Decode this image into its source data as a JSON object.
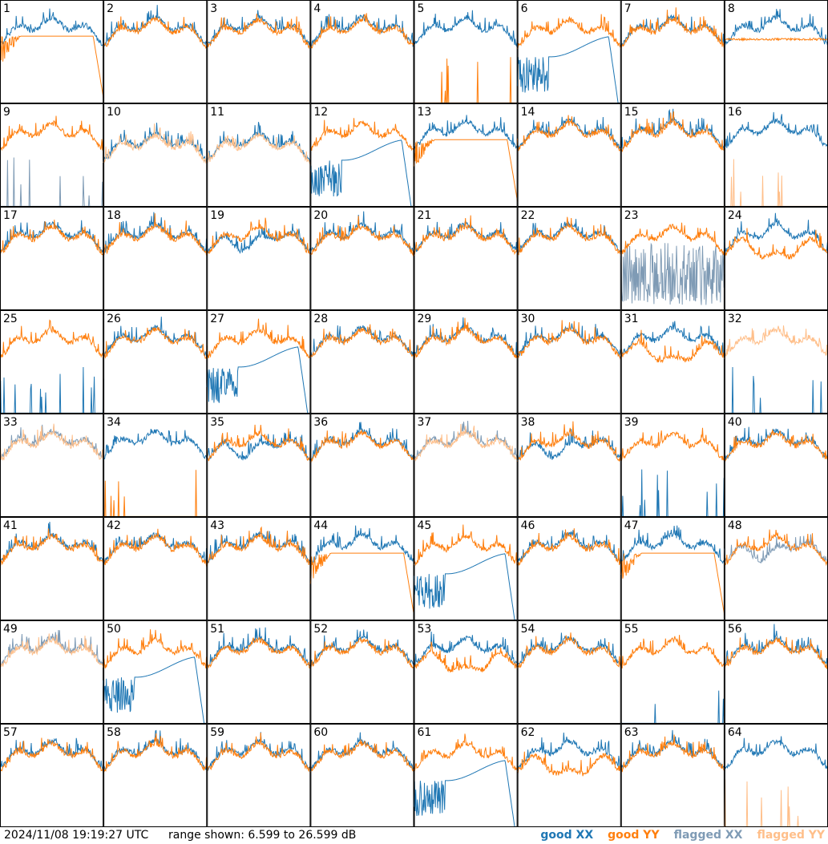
{
  "footer": {
    "timestamp": "2024/11/08 19:19:27 UTC",
    "range_text": "range shown: 6.599 to 26.599 dB"
  },
  "legend": [
    {
      "label": "good XX",
      "color": "#1f77b4"
    },
    {
      "label": "good YY",
      "color": "#ff7f0e"
    },
    {
      "label": "flagged XX",
      "color": "#7f9bb5"
    },
    {
      "label": "flagged YY",
      "color": "#ffbf8a"
    }
  ],
  "chart_data": {
    "type": "line",
    "layout": "small-multiples 8x8",
    "ylim": [
      6.599,
      26.599
    ],
    "y_unit": "dB",
    "panels": [
      {
        "label": "1",
        "xx": "good",
        "yy": "good",
        "shape": "yy-rolloff"
      },
      {
        "label": "2",
        "xx": "good",
        "yy": "good",
        "shape": "normal"
      },
      {
        "label": "3",
        "xx": "good",
        "yy": "good",
        "shape": "normal"
      },
      {
        "label": "4",
        "xx": "good",
        "yy": "good",
        "shape": "normal"
      },
      {
        "label": "5",
        "xx": "good",
        "yy": "good",
        "shape": "yy-dead"
      },
      {
        "label": "6",
        "xx": "good",
        "yy": "good",
        "shape": "xx-rolloff"
      },
      {
        "label": "7",
        "xx": "good",
        "yy": "good",
        "shape": "normal"
      },
      {
        "label": "8",
        "xx": "good",
        "yy": "good",
        "shape": "yy-flat"
      },
      {
        "label": "9",
        "xx": "flagged",
        "yy": "good",
        "shape": "xx-dead"
      },
      {
        "label": "10",
        "xx": "good",
        "yy": "flagged",
        "shape": "low"
      },
      {
        "label": "11",
        "xx": "good",
        "yy": "flagged",
        "shape": "low"
      },
      {
        "label": "12",
        "xx": "good",
        "yy": "good",
        "shape": "xx-rolloff"
      },
      {
        "label": "13",
        "xx": "good",
        "yy": "good",
        "shape": "yy-rolloff"
      },
      {
        "label": "14",
        "xx": "good",
        "yy": "good",
        "shape": "normal"
      },
      {
        "label": "15",
        "xx": "good",
        "yy": "good",
        "shape": "normal"
      },
      {
        "label": "16",
        "xx": "good",
        "yy": "flagged",
        "shape": "yy-dead"
      },
      {
        "label": "17",
        "xx": "good",
        "yy": "good",
        "shape": "normal"
      },
      {
        "label": "18",
        "xx": "good",
        "yy": "good",
        "shape": "normal"
      },
      {
        "label": "19",
        "xx": "good",
        "yy": "good",
        "shape": "xx-dip"
      },
      {
        "label": "20",
        "xx": "good",
        "yy": "good",
        "shape": "normal"
      },
      {
        "label": "21",
        "xx": "good",
        "yy": "good",
        "shape": "normal"
      },
      {
        "label": "22",
        "xx": "good",
        "yy": "good",
        "shape": "normal"
      },
      {
        "label": "23",
        "xx": "flagged",
        "yy": "good",
        "shape": "xx-noisy"
      },
      {
        "label": "24",
        "xx": "good",
        "yy": "good",
        "shape": "yy-dip"
      },
      {
        "label": "25",
        "xx": "good",
        "yy": "good",
        "shape": "xx-dead"
      },
      {
        "label": "26",
        "xx": "good",
        "yy": "good",
        "shape": "normal"
      },
      {
        "label": "27",
        "xx": "good",
        "yy": "good",
        "shape": "xx-rolloff"
      },
      {
        "label": "28",
        "xx": "good",
        "yy": "good",
        "shape": "normal"
      },
      {
        "label": "29",
        "xx": "good",
        "yy": "good",
        "shape": "normal"
      },
      {
        "label": "30",
        "xx": "good",
        "yy": "good",
        "shape": "normal"
      },
      {
        "label": "31",
        "xx": "good",
        "yy": "good",
        "shape": "yy-dip"
      },
      {
        "label": "32",
        "xx": "good",
        "yy": "flagged",
        "shape": "xx-dead"
      },
      {
        "label": "33",
        "xx": "flagged",
        "yy": "flagged",
        "shape": "normal"
      },
      {
        "label": "34",
        "xx": "good",
        "yy": "good",
        "shape": "yy-dead"
      },
      {
        "label": "35",
        "xx": "good",
        "yy": "good",
        "shape": "xx-dip"
      },
      {
        "label": "36",
        "xx": "good",
        "yy": "good",
        "shape": "normal"
      },
      {
        "label": "37",
        "xx": "flagged",
        "yy": "flagged",
        "shape": "normal"
      },
      {
        "label": "38",
        "xx": "good",
        "yy": "good",
        "shape": "xx-dip"
      },
      {
        "label": "39",
        "xx": "good",
        "yy": "good",
        "shape": "xx-dead"
      },
      {
        "label": "40",
        "xx": "good",
        "yy": "good",
        "shape": "normal"
      },
      {
        "label": "41",
        "xx": "good",
        "yy": "good",
        "shape": "normal"
      },
      {
        "label": "42",
        "xx": "good",
        "yy": "good",
        "shape": "normal"
      },
      {
        "label": "43",
        "xx": "good",
        "yy": "good",
        "shape": "normal"
      },
      {
        "label": "44",
        "xx": "good",
        "yy": "good",
        "shape": "yy-rolloff"
      },
      {
        "label": "45",
        "xx": "good",
        "yy": "good",
        "shape": "xx-rolloff"
      },
      {
        "label": "46",
        "xx": "good",
        "yy": "good",
        "shape": "normal"
      },
      {
        "label": "47",
        "xx": "good",
        "yy": "good",
        "shape": "yy-rolloff"
      },
      {
        "label": "48",
        "xx": "flagged",
        "yy": "good",
        "shape": "xx-dip"
      },
      {
        "label": "49",
        "xx": "flagged",
        "yy": "flagged",
        "shape": "normal"
      },
      {
        "label": "50",
        "xx": "good",
        "yy": "good",
        "shape": "xx-rolloff"
      },
      {
        "label": "51",
        "xx": "good",
        "yy": "good",
        "shape": "normal"
      },
      {
        "label": "52",
        "xx": "good",
        "yy": "good",
        "shape": "normal"
      },
      {
        "label": "53",
        "xx": "good",
        "yy": "good",
        "shape": "yy-dip"
      },
      {
        "label": "54",
        "xx": "good",
        "yy": "good",
        "shape": "normal"
      },
      {
        "label": "55",
        "xx": "good",
        "yy": "good",
        "shape": "xx-dead"
      },
      {
        "label": "56",
        "xx": "good",
        "yy": "good",
        "shape": "normal"
      },
      {
        "label": "57",
        "xx": "good",
        "yy": "good",
        "shape": "normal"
      },
      {
        "label": "58",
        "xx": "good",
        "yy": "good",
        "shape": "normal"
      },
      {
        "label": "59",
        "xx": "good",
        "yy": "good",
        "shape": "normal"
      },
      {
        "label": "60",
        "xx": "good",
        "yy": "good",
        "shape": "normal"
      },
      {
        "label": "61",
        "xx": "good",
        "yy": "good",
        "shape": "xx-rolloff"
      },
      {
        "label": "62",
        "xx": "good",
        "yy": "good",
        "shape": "yy-dip"
      },
      {
        "label": "63",
        "xx": "good",
        "yy": "good",
        "shape": "normal"
      },
      {
        "label": "64",
        "xx": "good",
        "yy": "flagged",
        "shape": "yy-dead"
      }
    ]
  }
}
